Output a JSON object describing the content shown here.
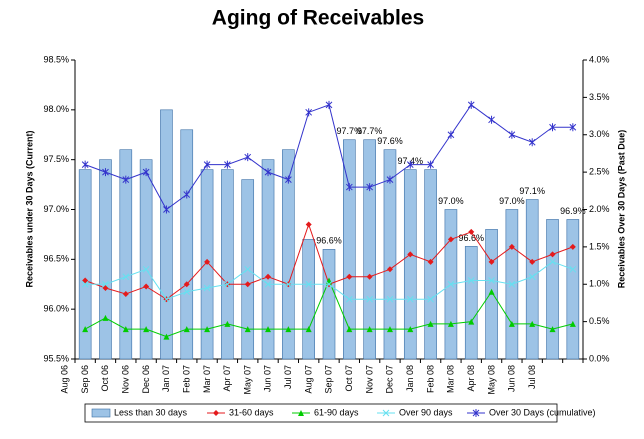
{
  "chart_data": {
    "type": "bar",
    "title": "Aging of Receivables",
    "y_label": "Receivables under 30 Days (Current)",
    "y2_label": "Receivables Over 30 Days (Past Due)",
    "categories": [
      "Aug 06",
      "Sep 06",
      "Oct 06",
      "Nov 06",
      "Dec 06",
      "Jan 07",
      "Feb 07",
      "Mar 07",
      "Apr 07",
      "May 07",
      "Jun 07",
      "Jul 07",
      "Aug 07",
      "Sep 07",
      "Oct 07",
      "Nov 07",
      "Dec 07",
      "Jan 08",
      "Feb 08",
      "Mar 08",
      "Apr 08",
      "May 08",
      "Jun 08",
      "Jul 08",
      null
    ],
    "ylim": [
      95.5,
      98.5
    ],
    "yticks": [
      {
        "value": 95.5,
        "label": "95.5%"
      },
      {
        "value": 96.0,
        "label": "96.0%"
      },
      {
        "value": 96.5,
        "label": "96.5%"
      },
      {
        "value": 97.0,
        "label": "97.0%"
      },
      {
        "value": 97.5,
        "label": "97.5%"
      },
      {
        "value": 98.0,
        "label": "98.0%"
      },
      {
        "value": 98.5,
        "label": "98.5%"
      }
    ],
    "y2lim": [
      0,
      4.0
    ],
    "y2ticks": [
      {
        "value": 0,
        "label": "0.0%"
      },
      {
        "value": 0.5,
        "label": "0.5%"
      },
      {
        "value": 1.0,
        "label": "1.0%"
      },
      {
        "value": 1.5,
        "label": "1.5%"
      },
      {
        "value": 2.0,
        "label": "2.0%"
      },
      {
        "value": 2.5,
        "label": "2.5%"
      },
      {
        "value": 3.0,
        "label": "3.0%"
      },
      {
        "value": 3.5,
        "label": "3.5%"
      },
      {
        "value": 4.0,
        "label": "4.0%"
      }
    ],
    "legend": "bottom",
    "series": [
      {
        "name": "Less than 30 days",
        "type": "bar",
        "color": "#9dc3e6",
        "values": [
          97.4,
          97.5,
          97.6,
          97.5,
          98.0,
          97.8,
          97.4,
          97.4,
          97.3,
          97.5,
          97.6,
          96.7,
          96.6,
          97.7,
          97.7,
          97.6,
          97.4,
          97.4,
          97.0,
          96.63,
          96.8,
          97.0,
          97.1,
          96.9,
          96.9
        ],
        "value_labels": [
          null,
          null,
          null,
          null,
          null,
          null,
          null,
          null,
          null,
          null,
          null,
          null,
          "96.6%",
          "97.7%",
          "97.7%",
          "97.6%",
          "97.4%",
          null,
          "97.0%",
          "96.6%",
          null,
          "97.0%",
          "97.1%",
          null,
          "96.9%"
        ]
      },
      {
        "name": "31-60 days",
        "type": "line",
        "axis": "y2",
        "color": "#e41a1c",
        "marker": "diamond",
        "values": [
          1.05,
          0.95,
          0.87,
          0.97,
          0.8,
          1.0,
          1.3,
          1.0,
          1.0,
          1.1,
          1.0,
          1.8,
          1.0,
          1.1,
          1.1,
          1.2,
          1.4,
          1.3,
          1.6,
          1.7,
          1.3,
          1.5,
          1.3,
          1.4,
          1.5
        ]
      },
      {
        "name": "61-90 days",
        "type": "line",
        "axis": "y2",
        "color": "#00cc00",
        "marker": "triangle",
        "values": [
          0.4,
          0.55,
          0.4,
          0.4,
          0.3,
          0.4,
          0.4,
          0.47,
          0.4,
          0.4,
          0.4,
          0.4,
          1.05,
          0.4,
          0.4,
          0.4,
          0.4,
          0.47,
          0.47,
          0.5,
          0.9,
          0.47,
          0.47,
          0.4,
          0.47
        ]
      },
      {
        "name": "Over 90 days",
        "type": "line",
        "axis": "y2",
        "color": "#66e0f0",
        "marker": "x",
        "values": [
          1.0,
          1.0,
          1.1,
          1.2,
          0.8,
          0.9,
          0.95,
          1.0,
          1.2,
          1.0,
          1.0,
          1.0,
          1.0,
          0.8,
          0.8,
          0.8,
          0.8,
          0.8,
          1.0,
          1.05,
          1.05,
          1.0,
          1.1,
          1.3,
          1.2
        ]
      },
      {
        "name": "Over 30 Days (cumulative)",
        "type": "line",
        "axis": "y2",
        "color": "#3333cc",
        "marker": "star",
        "values": [
          2.6,
          2.5,
          2.4,
          2.5,
          2.0,
          2.2,
          2.6,
          2.6,
          2.7,
          2.5,
          2.4,
          3.3,
          3.4,
          2.3,
          2.3,
          2.4,
          2.6,
          2.6,
          3.0,
          3.4,
          3.2,
          3.0,
          2.9,
          3.1,
          3.1
        ]
      }
    ]
  }
}
